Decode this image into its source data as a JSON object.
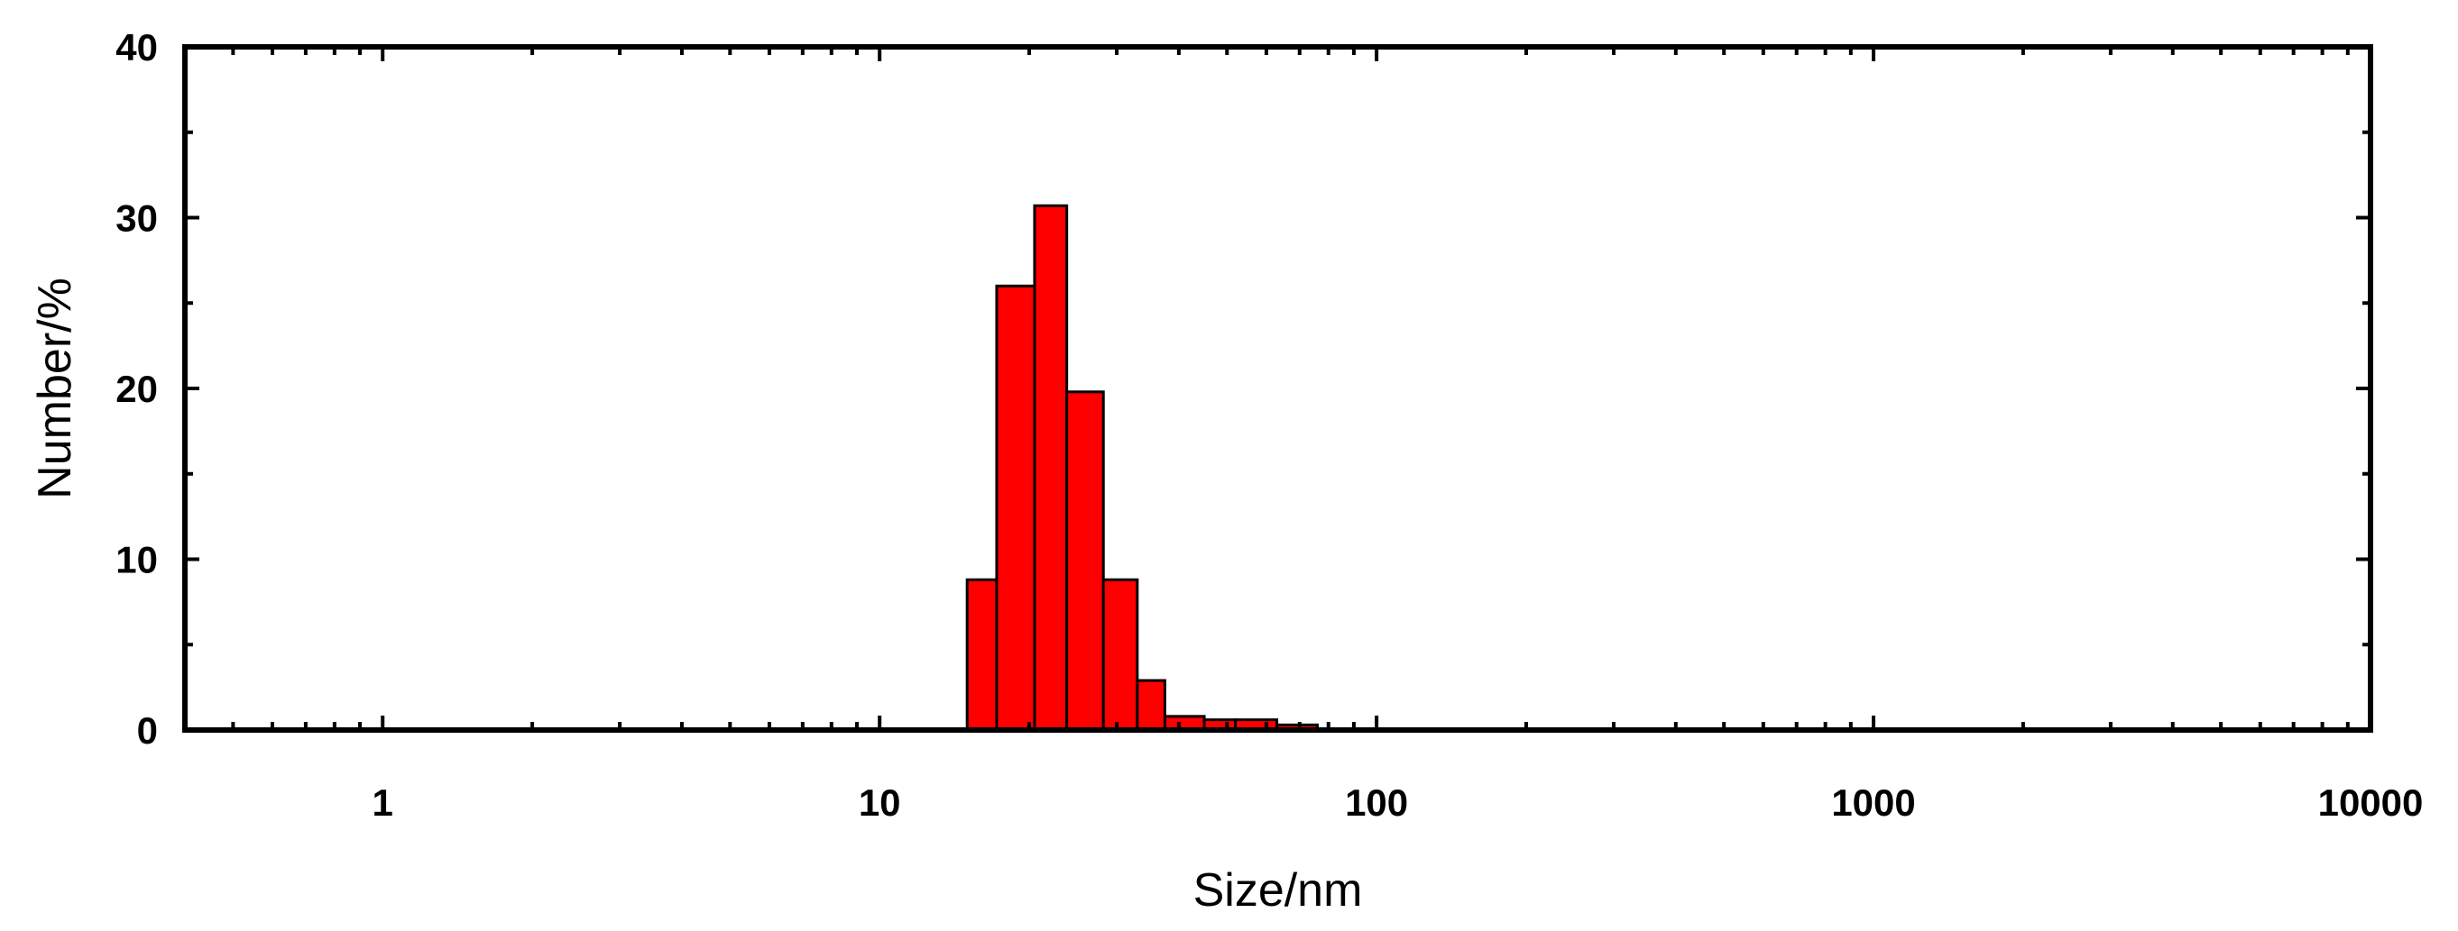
{
  "chart_data": {
    "type": "bar",
    "xlabel": "Size/nm",
    "ylabel": "Number/%",
    "x_scale": "log",
    "xlim": [
      0.4,
      10000
    ],
    "ylim": [
      0,
      40
    ],
    "x_ticks": [
      1,
      10,
      100,
      1000,
      10000
    ],
    "x_tick_labels": [
      "1",
      "10",
      "100",
      "1000",
      "10000"
    ],
    "y_ticks": [
      0,
      10,
      20,
      30,
      40
    ],
    "y_tick_labels": [
      "0",
      "10",
      "20",
      "30",
      "40"
    ],
    "bar_color": "#ff0000",
    "bins": [
      {
        "x0": 15.0,
        "x1": 17.2,
        "value": 8.8
      },
      {
        "x0": 17.2,
        "x1": 20.5,
        "value": 26.0
      },
      {
        "x0": 20.5,
        "x1": 23.8,
        "value": 30.7
      },
      {
        "x0": 23.8,
        "x1": 28.2,
        "value": 19.8
      },
      {
        "x0": 28.2,
        "x1": 33.0,
        "value": 8.8
      },
      {
        "x0": 33.0,
        "x1": 37.5,
        "value": 2.9
      },
      {
        "x0": 37.5,
        "x1": 45.0,
        "value": 0.8
      },
      {
        "x0": 45.0,
        "x1": 52.0,
        "value": 0.6
      },
      {
        "x0": 52.0,
        "x1": 63.0,
        "value": 0.6
      },
      {
        "x0": 63.0,
        "x1": 76.0,
        "value": 0.3
      }
    ]
  }
}
